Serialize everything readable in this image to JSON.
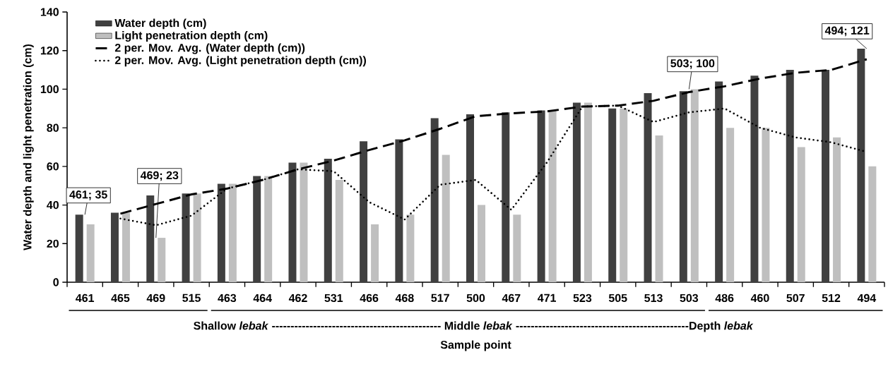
{
  "chart_data": {
    "type": "bar",
    "xlabel": "Sample point",
    "ylabel": "Water depth and light penetration (cm)",
    "categories": [
      "461",
      "465",
      "469",
      "515",
      "463",
      "464",
      "462",
      "531",
      "466",
      "468",
      "517",
      "500",
      "467",
      "471",
      "523",
      "505",
      "513",
      "503",
      "486",
      "460",
      "507",
      "512",
      "494"
    ],
    "series": [
      {
        "name": "Water depth (cm)",
        "color": "#404040",
        "values": [
          35,
          36,
          45,
          46,
          51,
          55,
          62,
          64,
          73,
          74,
          85,
          87,
          88,
          89,
          93,
          90,
          98,
          99,
          104,
          107,
          110,
          110,
          121
        ]
      },
      {
        "name": "Light penetration depth (cm)",
        "color": "#bfbfbf",
        "values": [
          30,
          36,
          23,
          46,
          51,
          55,
          62,
          53,
          30,
          35,
          66,
          40,
          35,
          89,
          93,
          90,
          76,
          100,
          80,
          80,
          70,
          75,
          60
        ]
      },
      {
        "name": "2 per. Mov. Avg. (Water depth (cm))",
        "type": "line",
        "line_style": "dashed",
        "color": "#000000",
        "values": [
          null,
          35.5,
          40.5,
          45.5,
          48.5,
          53,
          58.5,
          63,
          68.5,
          73.5,
          79.5,
          86,
          87.5,
          88.5,
          91,
          91.5,
          94,
          98.5,
          101.5,
          105.5,
          108.5,
          110,
          115.5
        ]
      },
      {
        "name": "2 per. Mov. Avg. (Light penetration depth (cm))",
        "type": "line",
        "line_style": "dotted",
        "color": "#000000",
        "values": [
          null,
          33,
          29.5,
          34.5,
          48.5,
          53,
          58.5,
          57.5,
          41.5,
          32.5,
          50.5,
          53,
          37.5,
          62,
          91,
          91.5,
          83,
          88,
          90,
          80,
          75,
          72.5,
          67.5
        ]
      }
    ],
    "ylim": [
      0,
      140
    ],
    "yticks": [
      0,
      20,
      40,
      60,
      80,
      100,
      120,
      140
    ],
    "legend": "top left",
    "grid": false,
    "annotations": [
      {
        "text": "461; 35",
        "x": "461",
        "y": 35
      },
      {
        "text": "469; 23",
        "x": "469",
        "y": 23
      },
      {
        "text": "503; 100",
        "x": "503",
        "y": 100
      },
      {
        "text": "494; 121",
        "x": "494",
        "y": 121
      },
      "Shallow *lebak* --------------------------------------------- Middle *lebak* ----------------------------------------------Depth *lebak*"
    ]
  }
}
